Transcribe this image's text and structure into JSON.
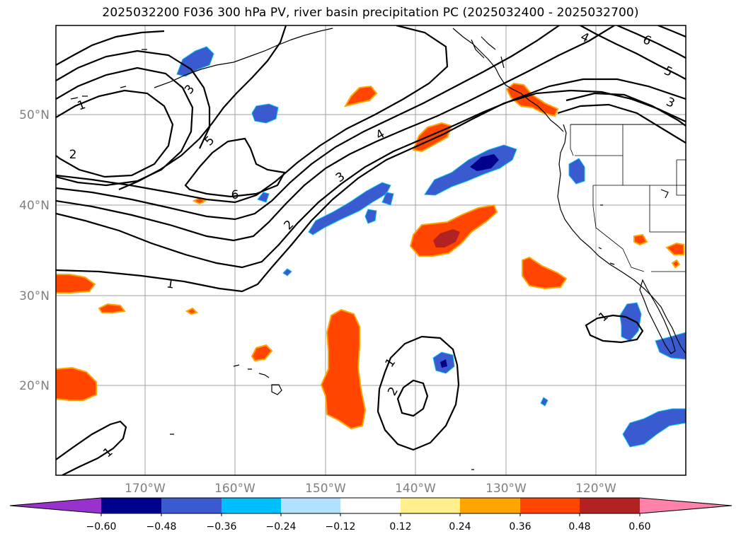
{
  "title": "2025032200 F036 300 hPa PV, river basin precipitation PC (2025032400 - 2025032700)",
  "map": {
    "lat_labels": [
      "50°N",
      "40°N",
      "30°N",
      "20°N"
    ],
    "lon_labels": [
      "170°W",
      "160°W",
      "150°W",
      "140°W",
      "130°W",
      "120°W"
    ],
    "contour_labels": [
      "1",
      "2",
      "3",
      "4",
      "5",
      "6",
      "5",
      "4",
      "3",
      "2",
      "1",
      "1",
      "2",
      "1",
      "6",
      "5",
      "4",
      "3",
      "1"
    ],
    "colors": {
      "contour": "#000000",
      "gridline": "#a0a0a0",
      "coastline": "#000000",
      "tick_label": "#808080"
    }
  },
  "colorbar": {
    "colors": [
      "#9932cc",
      "#00008b",
      "#3a5bcf",
      "#00bfff",
      "#b0e2ff",
      "#ffffff",
      "#fff08c",
      "#ffa500",
      "#ff4500",
      "#b22222",
      "#ff82ab",
      "#ff82ab"
    ],
    "tick_labels": [
      "−0.60",
      "−0.48",
      "−0.36",
      "−0.24",
      "−0.12",
      "0.12",
      "0.24",
      "0.36",
      "0.48",
      "0.60"
    ]
  }
}
